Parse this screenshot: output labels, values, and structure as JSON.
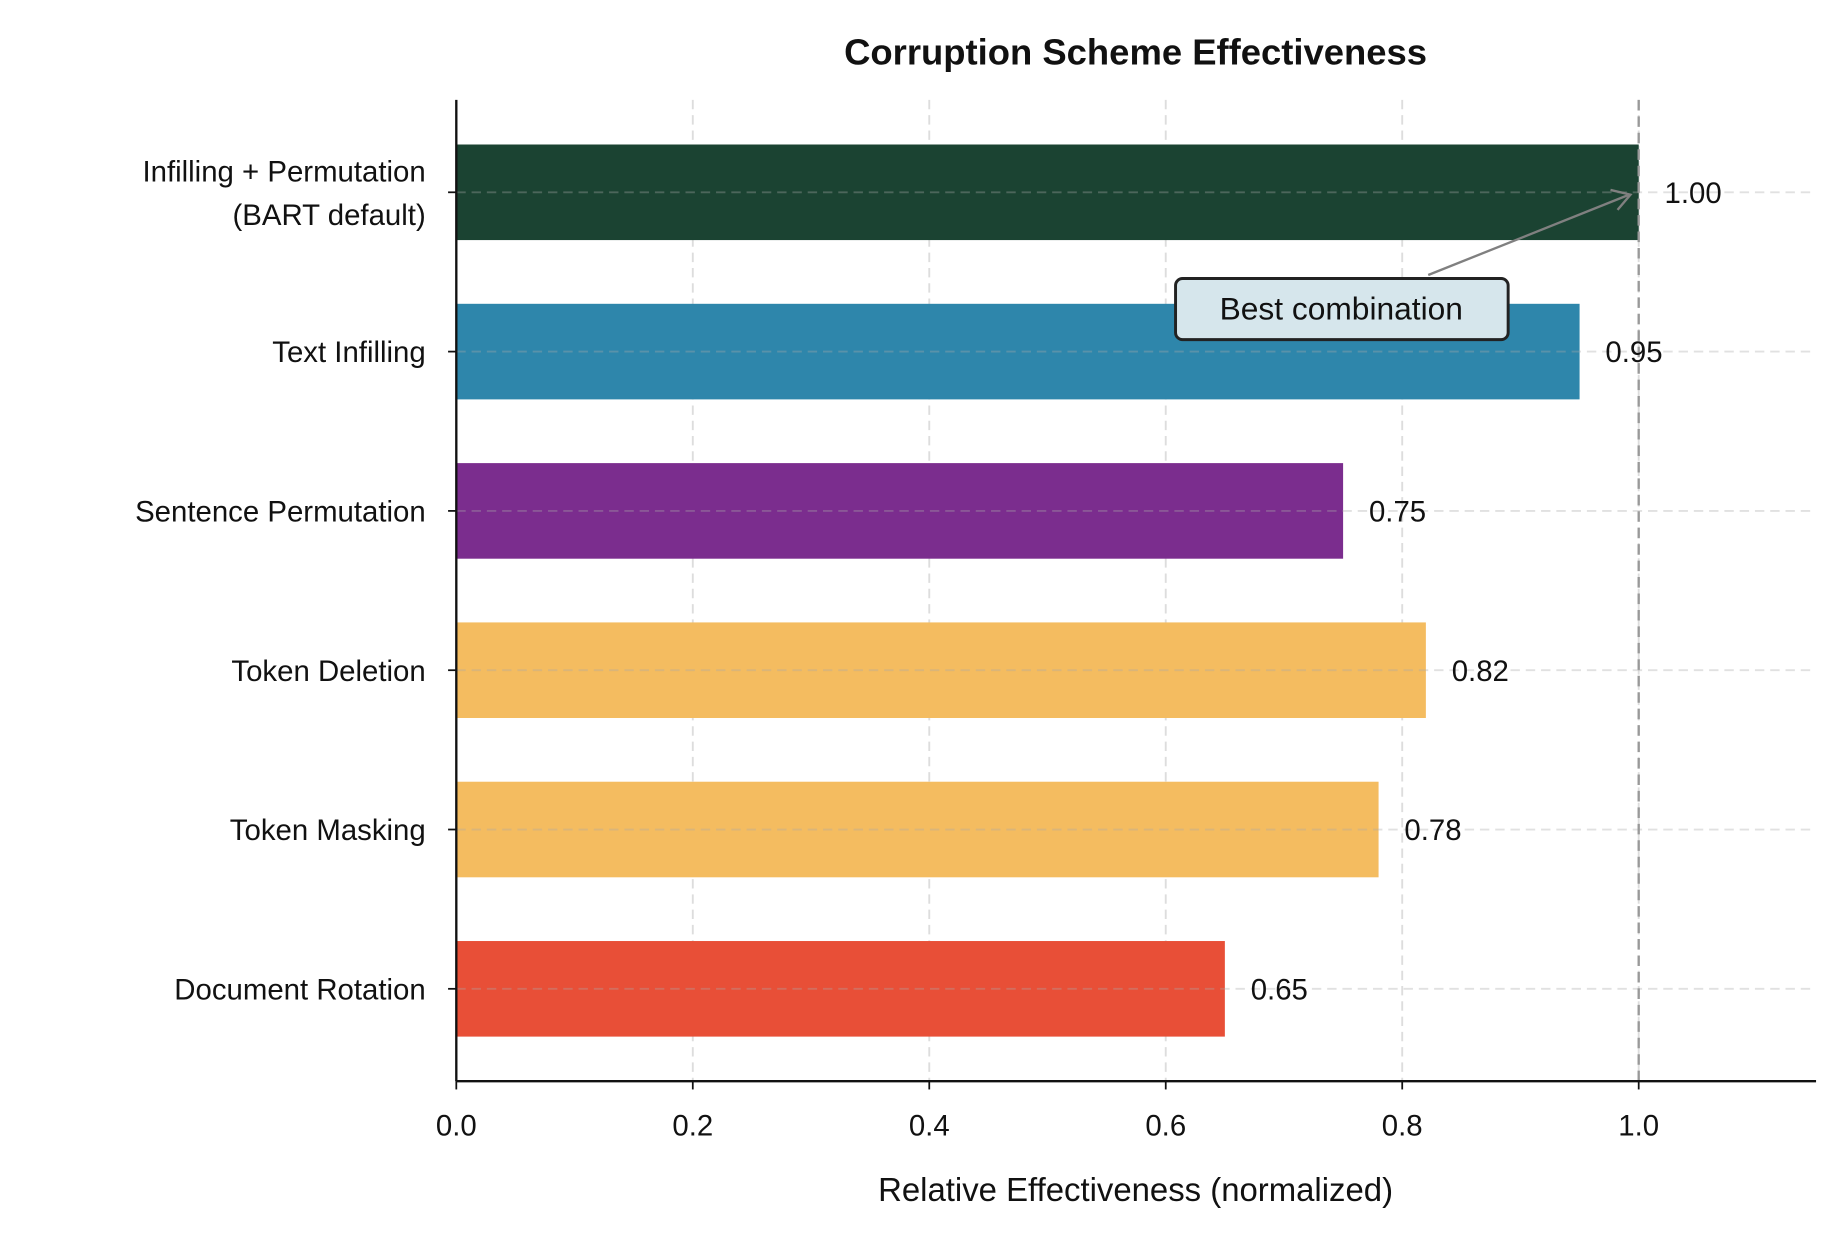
{
  "chart_data": {
    "type": "bar",
    "orientation": "horizontal",
    "title": "Corruption Scheme Effectiveness",
    "xlabel": "Relative Effectiveness (normalized)",
    "ylabel": "",
    "xlim": [
      0,
      1.15
    ],
    "xticks": [
      "0.0",
      "0.2",
      "0.4",
      "0.6",
      "0.8",
      "1.0"
    ],
    "grid": true,
    "categories": [
      "Document Rotation",
      "Token Masking",
      "Token Deletion",
      "Sentence Permutation",
      "Text Infilling",
      [
        "Infilling + Permutation",
        "(BART default)"
      ]
    ],
    "values": [
      0.65,
      0.78,
      0.82,
      0.75,
      0.95,
      1.0
    ],
    "value_labels": [
      "0.65",
      "0.78",
      "0.82",
      "0.75",
      "0.95",
      "1.00"
    ],
    "colors": [
      "#e84f37",
      "#f4bc60",
      "#f4bc60",
      "#7b2d8e",
      "#2e86ab",
      "#1b4332"
    ],
    "reference_line": {
      "x": 1.0,
      "color": "#999999",
      "style": "dashed"
    },
    "annotation": {
      "text": "Best combination",
      "points_to": {
        "x": 1.0,
        "category": "Infilling + Permutation (BART default)"
      },
      "box_color": "#d6e6ec"
    }
  }
}
